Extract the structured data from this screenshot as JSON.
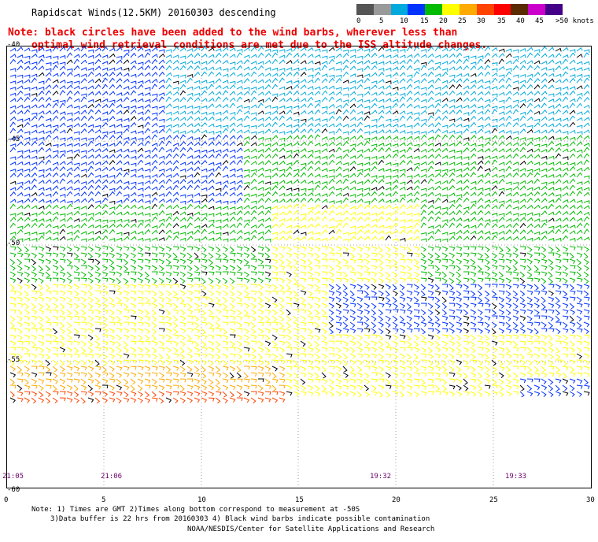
{
  "header": {
    "title": "Rapidscat Winds(12.5KM) 20160303 descending",
    "note_line1": "Note: black circles have been added to the wind barbs, wherever less than",
    "note_line2": "optimal wind retrieval conditions are met due to the ISS altitude changes."
  },
  "colorbar": {
    "colors": [
      "#555555",
      "#9a9a9a",
      "#00aadd",
      "#0033ff",
      "#00bb00",
      "#ffff00",
      "#ffaa00",
      "#ff4400",
      "#ff0000",
      "#5a2a00",
      "#cc00cc",
      "#440088"
    ],
    "labels": [
      "0",
      "5",
      "10",
      "15",
      "20",
      "25",
      "30",
      "35",
      "40",
      "45",
      ">50 knots"
    ]
  },
  "axes": {
    "lat_labels": [
      "-40",
      "-45",
      "-50",
      "-55",
      "-60"
    ],
    "lon_labels": [
      "0",
      "5",
      "10",
      "15",
      "20",
      "25",
      "30"
    ]
  },
  "times": [
    "21:05",
    "21:06",
    "19:32",
    "19:33"
  ],
  "footer": {
    "line1": "Note: 1) Times are GMT 2)Times along bottom correspond to measurement at -50S",
    "line2": "3)Data buffer is 22 hrs from 20160303 4) Black wind barbs indicate possible contamination",
    "line3": "NOAA/NESDIS/Center for Satellite Applications and Research"
  }
}
